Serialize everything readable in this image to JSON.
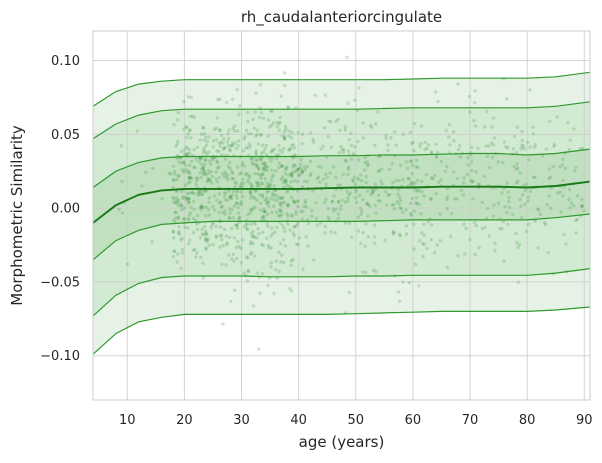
{
  "chart_data": {
    "type": "line",
    "title": "rh_caudalanteriorcingulate",
    "xlabel": "age (years)",
    "ylabel": "Morphometric Similarity",
    "xlim": [
      4,
      91
    ],
    "ylim": [
      -0.13,
      0.12
    ],
    "x_ticks": [
      10,
      20,
      30,
      40,
      50,
      60,
      70,
      80,
      90
    ],
    "y_ticks": [
      -0.1,
      -0.05,
      0.0,
      0.05,
      0.1
    ],
    "y_tick_labels": [
      "−0.10",
      "−0.05",
      "0.00",
      "0.05",
      "0.10"
    ],
    "grid": true,
    "colors": {
      "line": "#2e9a2e",
      "median": "#1a7a1a",
      "band_outer": "#e6f2e6",
      "band_mid": "#d2e9d2",
      "band_inner": "#c0e0c0",
      "points": "#2e8b2e",
      "grid": "#cccccc",
      "frame": "#cccccc"
    },
    "x": [
      4,
      8,
      12,
      16,
      20,
      25,
      30,
      35,
      40,
      45,
      50,
      55,
      60,
      65,
      70,
      75,
      80,
      85,
      91
    ],
    "series": [
      {
        "values": [
          -0.099,
          -0.085,
          -0.077,
          -0.074,
          -0.072,
          -0.072,
          -0.072,
          -0.072,
          -0.072,
          -0.072,
          -0.0715,
          -0.071,
          -0.0705,
          -0.07,
          -0.07,
          -0.07,
          -0.07,
          -0.069,
          -0.067
        ]
      },
      {
        "values": [
          -0.073,
          -0.059,
          -0.051,
          -0.047,
          -0.046,
          -0.046,
          -0.046,
          -0.0465,
          -0.0465,
          -0.0465,
          -0.046,
          -0.046,
          -0.0455,
          -0.0455,
          -0.0455,
          -0.0455,
          -0.0455,
          -0.044,
          -0.041
        ]
      },
      {
        "values": [
          -0.035,
          -0.022,
          -0.015,
          -0.011,
          -0.01,
          -0.009,
          -0.009,
          -0.009,
          -0.009,
          -0.009,
          -0.009,
          -0.0085,
          -0.008,
          -0.008,
          -0.008,
          -0.008,
          -0.008,
          -0.0065,
          -0.004
        ]
      },
      {
        "values": [
          -0.01,
          0.002,
          0.009,
          0.012,
          0.013,
          0.013,
          0.013,
          0.013,
          0.013,
          0.0135,
          0.014,
          0.014,
          0.014,
          0.0145,
          0.0145,
          0.0145,
          0.014,
          0.015,
          0.018
        ]
      },
      {
        "values": [
          0.014,
          0.025,
          0.031,
          0.034,
          0.035,
          0.035,
          0.035,
          0.035,
          0.035,
          0.0355,
          0.0355,
          0.036,
          0.036,
          0.0365,
          0.037,
          0.037,
          0.036,
          0.037,
          0.04
        ]
      },
      {
        "values": [
          0.047,
          0.057,
          0.063,
          0.066,
          0.067,
          0.067,
          0.067,
          0.067,
          0.067,
          0.067,
          0.067,
          0.0675,
          0.068,
          0.068,
          0.068,
          0.068,
          0.068,
          0.069,
          0.072
        ]
      },
      {
        "values": [
          0.069,
          0.079,
          0.084,
          0.086,
          0.087,
          0.087,
          0.087,
          0.087,
          0.087,
          0.087,
          0.087,
          0.087,
          0.0875,
          0.088,
          0.088,
          0.088,
          0.088,
          0.089,
          0.092
        ]
      }
    ],
    "median_series_index": 3,
    "scatter": {
      "count": 1400,
      "center": "median curve",
      "spread_sd": 0.027,
      "age_distribution": "dense 18–40, sparser toward 90"
    }
  }
}
